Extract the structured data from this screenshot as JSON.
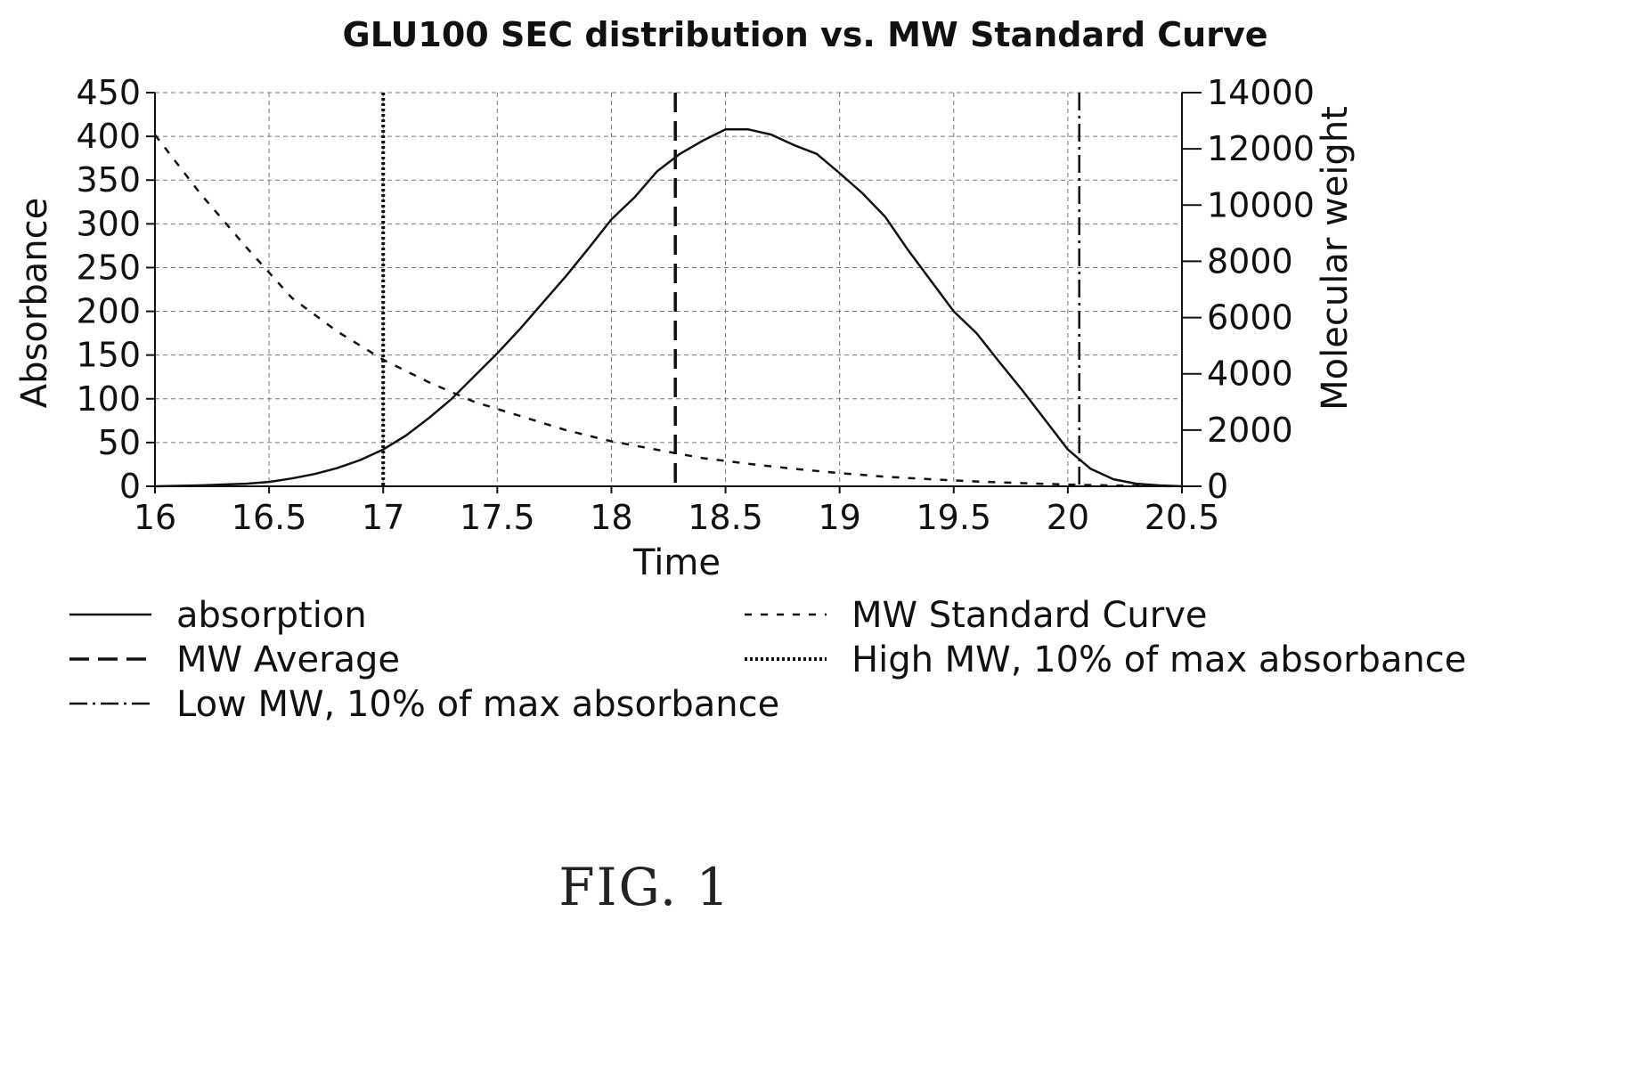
{
  "chart_data": {
    "type": "line",
    "title": "GLU100 SEC distribution vs. MW Standard Curve",
    "xlabel": "Time",
    "ylabel": "Absorbance",
    "y2label": "Molecular weight",
    "xlim": [
      16,
      20.5
    ],
    "ylim": [
      0,
      450
    ],
    "y2lim": [
      0,
      14000
    ],
    "x_ticks": [
      "16",
      "16.5",
      "17",
      "17.5",
      "18",
      "18.5",
      "19",
      "19.5",
      "20",
      "20.5"
    ],
    "y_ticks": [
      "0",
      "50",
      "100",
      "150",
      "200",
      "250",
      "300",
      "350",
      "400",
      "450"
    ],
    "y2_ticks": [
      "0",
      "2000",
      "4000",
      "6000",
      "8000",
      "10000",
      "12000",
      "14000"
    ],
    "grid": true,
    "legend_position": "bottom",
    "series": [
      {
        "name": "absorption",
        "axis": "left",
        "style": "solid",
        "x": [
          16.0,
          16.2,
          16.4,
          16.5,
          16.6,
          16.7,
          16.8,
          16.9,
          17.0,
          17.1,
          17.2,
          17.3,
          17.4,
          17.5,
          17.6,
          17.7,
          17.8,
          17.9,
          18.0,
          18.1,
          18.2,
          18.25,
          18.3,
          18.4,
          18.5,
          18.6,
          18.7,
          18.8,
          18.9,
          19.0,
          19.1,
          19.2,
          19.3,
          19.4,
          19.5,
          19.6,
          19.7,
          19.8,
          19.9,
          20.0,
          20.1,
          20.2,
          20.3,
          20.4,
          20.5
        ],
        "values": [
          0,
          1,
          3,
          5,
          9,
          14,
          21,
          30,
          42,
          58,
          78,
          100,
          126,
          152,
          180,
          210,
          240,
          272,
          305,
          330,
          360,
          370,
          380,
          395,
          408,
          408,
          402,
          390,
          380,
          358,
          335,
          308,
          270,
          235,
          200,
          175,
          142,
          110,
          76,
          42,
          20,
          8,
          3,
          1,
          0
        ]
      },
      {
        "name": "MW Standard Curve",
        "axis": "right",
        "style": "dashed-short",
        "x": [
          16.0,
          16.2,
          16.4,
          16.6,
          16.8,
          17.0,
          17.2,
          17.4,
          17.6,
          17.8,
          18.0,
          18.2,
          18.4,
          18.6,
          18.8,
          19.0,
          19.2,
          19.4,
          19.6,
          19.8,
          20.0,
          20.2,
          20.5
        ],
        "values": [
          12500,
          10400,
          8500,
          6700,
          5500,
          4500,
          3700,
          3000,
          2500,
          2000,
          1600,
          1300,
          1000,
          800,
          620,
          470,
          340,
          250,
          170,
          110,
          60,
          30,
          0
        ]
      },
      {
        "name": "MW Average",
        "axis": "left",
        "style": "dashed-long",
        "vertical_at_x": 18.28
      },
      {
        "name": "High MW, 10% of max absorbance",
        "axis": "left",
        "style": "dotted",
        "vertical_at_x": 17.0
      },
      {
        "name": "Low MW, 10% of max absorbance",
        "axis": "left",
        "style": "dash-dot",
        "vertical_at_x": 20.05
      }
    ]
  },
  "figure_label": "FIG. 1"
}
